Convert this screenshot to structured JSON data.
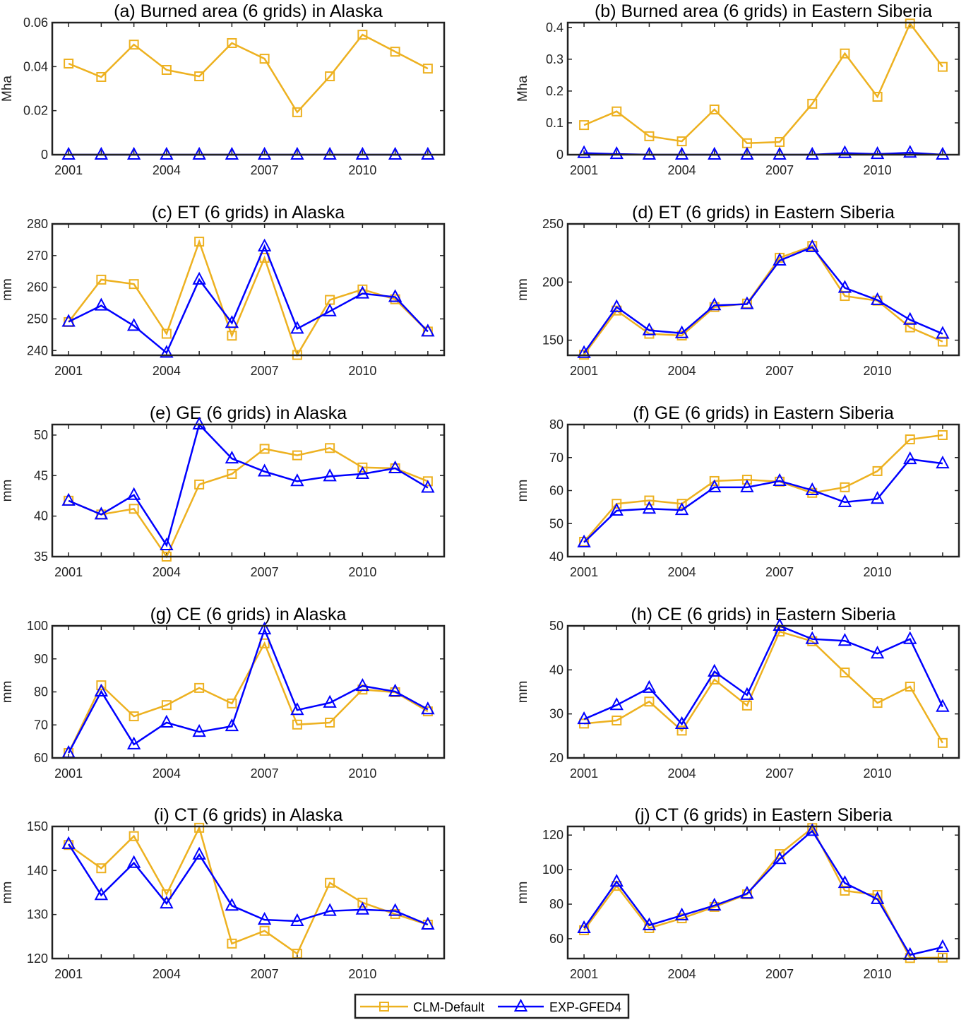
{
  "colors": {
    "CLM-Default": "#EDB120",
    "EXP-GFED4": "#0000FF"
  },
  "legend": {
    "items": [
      "CLM-Default",
      "EXP-GFED4"
    ],
    "placement": "bottom-center"
  },
  "chart_data": [
    {
      "type": "line",
      "title": "(a) Burned area (6 grids) in Alaska",
      "ylabel": "Mha",
      "xlim": [
        2000.5,
        2012.5
      ],
      "ylim": [
        0,
        0.06
      ],
      "yticks": [
        0,
        0.02,
        0.04,
        0.06
      ],
      "xticks": [
        2001,
        2004,
        2007,
        2010
      ],
      "x": [
        2001,
        2002,
        2003,
        2004,
        2005,
        2006,
        2007,
        2008,
        2009,
        2010,
        2011,
        2012
      ],
      "series": [
        {
          "name": "CLM-Default",
          "values": [
            0.0414,
            0.0353,
            0.05,
            0.0385,
            0.0356,
            0.0507,
            0.0436,
            0.0193,
            0.0356,
            0.0545,
            0.0468,
            0.0391
          ]
        },
        {
          "name": "EXP-GFED4",
          "values": [
            0,
            0,
            0,
            0,
            0,
            0,
            0,
            0,
            0,
            0,
            0,
            0
          ]
        }
      ]
    },
    {
      "type": "line",
      "title": "(b) Burned area (6 grids) in Eastern Siberia",
      "ylabel": "Mha",
      "xlim": [
        2000.5,
        2012.5
      ],
      "ylim": [
        0,
        0.415
      ],
      "yticks": [
        0,
        0.1,
        0.2,
        0.3,
        0.4
      ],
      "xticks": [
        2001,
        2004,
        2007,
        2010
      ],
      "x": [
        2001,
        2002,
        2003,
        2004,
        2005,
        2006,
        2007,
        2008,
        2009,
        2010,
        2011,
        2012
      ],
      "series": [
        {
          "name": "CLM-Default",
          "values": [
            0.093,
            0.136,
            0.058,
            0.042,
            0.142,
            0.036,
            0.04,
            0.16,
            0.318,
            0.182,
            0.412,
            0.276
          ]
        },
        {
          "name": "EXP-GFED4",
          "values": [
            0.005,
            0.002,
            0,
            0,
            0,
            0,
            0,
            0,
            0.005,
            0.002,
            0.006,
            0
          ]
        }
      ]
    },
    {
      "type": "line",
      "title": "(c) ET (6 grids) in Alaska",
      "ylabel": "mm",
      "xlim": [
        2000.5,
        2012.5
      ],
      "ylim": [
        238.5,
        280
      ],
      "yticks": [
        240,
        250,
        260,
        270,
        280
      ],
      "xticks": [
        2001,
        2004,
        2007,
        2010
      ],
      "x": [
        2001,
        2002,
        2003,
        2004,
        2005,
        2006,
        2007,
        2008,
        2009,
        2010,
        2011,
        2012
      ],
      "series": [
        {
          "name": "CLM-Default",
          "values": [
            249,
            262.4,
            261,
            245.3,
            274.4,
            244.7,
            269.3,
            238.6,
            256,
            259.3,
            256.2,
            246
          ]
        },
        {
          "name": "EXP-GFED4",
          "values": [
            249.1,
            254.2,
            247.8,
            239.3,
            262.4,
            248.7,
            272.9,
            246.9,
            252.4,
            258,
            256.9,
            246
          ]
        }
      ]
    },
    {
      "type": "line",
      "title": "(d) ET (6 grids) in Eastern Siberia",
      "ylabel": "mm",
      "xlim": [
        2000.5,
        2012.5
      ],
      "ylim": [
        137,
        250
      ],
      "yticks": [
        150,
        200,
        250
      ],
      "xticks": [
        2001,
        2004,
        2007,
        2010
      ],
      "x": [
        2001,
        2002,
        2003,
        2004,
        2005,
        2006,
        2007,
        2008,
        2009,
        2010,
        2011,
        2012
      ],
      "series": [
        {
          "name": "CLM-Default",
          "values": [
            137.5,
            175.5,
            155.5,
            154,
            178.5,
            181.5,
            220.9,
            231,
            188,
            184,
            161,
            148.8
          ]
        },
        {
          "name": "EXP-GFED4",
          "values": [
            139,
            178.5,
            158.5,
            156,
            180,
            181,
            218.5,
            230,
            195,
            184.5,
            167.5,
            155.5
          ]
        }
      ]
    },
    {
      "type": "line",
      "title": "(e) GE (6 grids) in Alaska",
      "ylabel": "mm",
      "xlim": [
        2000.5,
        2012.5
      ],
      "ylim": [
        35,
        51.3
      ],
      "yticks": [
        35,
        40,
        45,
        50
      ],
      "xticks": [
        2001,
        2004,
        2007,
        2010
      ],
      "x": [
        2001,
        2002,
        2003,
        2004,
        2005,
        2006,
        2007,
        2008,
        2009,
        2010,
        2011,
        2012
      ],
      "series": [
        {
          "name": "CLM-Default",
          "values": [
            41.9,
            40.2,
            40.9,
            35,
            43.9,
            45.2,
            48.3,
            47.5,
            48.4,
            46,
            45.9,
            44.3
          ]
        },
        {
          "name": "EXP-GFED4",
          "values": [
            41.9,
            40.2,
            42.6,
            36.4,
            51.3,
            47.1,
            45.5,
            44.3,
            44.9,
            45.2,
            45.9,
            43.5
          ]
        }
      ]
    },
    {
      "type": "line",
      "title": "(f) GE (6 grids) in Eastern Siberia",
      "ylabel": "mm",
      "xlim": [
        2000.5,
        2012.5
      ],
      "ylim": [
        40,
        80
      ],
      "yticks": [
        40,
        50,
        60,
        70,
        80
      ],
      "xticks": [
        2001,
        2004,
        2007,
        2010
      ],
      "x": [
        2001,
        2002,
        2003,
        2004,
        2005,
        2006,
        2007,
        2008,
        2009,
        2010,
        2011,
        2012
      ],
      "series": [
        {
          "name": "CLM-Default",
          "values": [
            44.5,
            56,
            57,
            56,
            62.9,
            63.3,
            62.7,
            59.3,
            61,
            65.9,
            75.5,
            76.8
          ]
        },
        {
          "name": "EXP-GFED4",
          "values": [
            44.3,
            53.9,
            54.5,
            54.1,
            61,
            61,
            62.9,
            60.1,
            56.5,
            57.5,
            69.5,
            68.2
          ]
        }
      ]
    },
    {
      "type": "line",
      "title": "(g) CE (6 grids) in Alaska",
      "ylabel": "mm",
      "xlim": [
        2000.5,
        2012.5
      ],
      "ylim": [
        60,
        100
      ],
      "yticks": [
        60,
        70,
        80,
        90,
        100
      ],
      "xticks": [
        2001,
        2004,
        2007,
        2010
      ],
      "x": [
        2001,
        2002,
        2003,
        2004,
        2005,
        2006,
        2007,
        2008,
        2009,
        2010,
        2011,
        2012
      ],
      "series": [
        {
          "name": "CLM-Default",
          "values": [
            61.5,
            82,
            72.6,
            76,
            81.2,
            76.5,
            94.7,
            70.1,
            70.7,
            80.7,
            79.9,
            74.1
          ]
        },
        {
          "name": "EXP-GFED4",
          "values": [
            61.5,
            80.1,
            64.1,
            70.7,
            67.9,
            69.6,
            98.9,
            74.5,
            76.7,
            81.8,
            80.1,
            74.7
          ]
        }
      ]
    },
    {
      "type": "line",
      "title": "(h) CE (6 grids) in Eastern Siberia",
      "ylabel": "mm",
      "xlim": [
        2000.5,
        2012.5
      ],
      "ylim": [
        20,
        50
      ],
      "yticks": [
        20,
        30,
        40,
        50
      ],
      "xticks": [
        2001,
        2004,
        2007,
        2010
      ],
      "x": [
        2001,
        2002,
        2003,
        2004,
        2005,
        2006,
        2007,
        2008,
        2009,
        2010,
        2011,
        2012
      ],
      "series": [
        {
          "name": "CLM-Default",
          "values": [
            27.8,
            28.5,
            32.8,
            26.2,
            37.8,
            31.9,
            48.7,
            46.5,
            39.4,
            32.5,
            36.2,
            23.4
          ]
        },
        {
          "name": "EXP-GFED4",
          "values": [
            28.8,
            32,
            35.9,
            27.7,
            39.6,
            34.3,
            50,
            47,
            46.6,
            43.7,
            47,
            31.6
          ]
        }
      ]
    },
    {
      "type": "line",
      "title": "(i) CT (6 grids) in Alaska",
      "ylabel": "mm",
      "xlim": [
        2000.5,
        2012.5
      ],
      "ylim": [
        120,
        150
      ],
      "yticks": [
        120,
        130,
        140,
        150
      ],
      "xticks": [
        2001,
        2004,
        2007,
        2010
      ],
      "x": [
        2001,
        2002,
        2003,
        2004,
        2005,
        2006,
        2007,
        2008,
        2009,
        2010,
        2011,
        2012
      ],
      "series": [
        {
          "name": "CLM-Default",
          "values": [
            145.8,
            140.5,
            147.8,
            134.6,
            149.7,
            123.4,
            126.3,
            121.1,
            137.2,
            132.7,
            130.1,
            127.7
          ]
        },
        {
          "name": "EXP-GFED4",
          "values": [
            146,
            134.4,
            141.7,
            132.5,
            143.6,
            132,
            128.8,
            128.5,
            130.8,
            131.1,
            130.8,
            127.7
          ]
        }
      ]
    },
    {
      "type": "line",
      "title": "(j) CT (6 grids) in Eastern Siberia",
      "ylabel": "mm",
      "xlim": [
        2000.5,
        2012.5
      ],
      "ylim": [
        48.5,
        125
      ],
      "yticks": [
        60,
        80,
        100,
        120
      ],
      "xticks": [
        2001,
        2004,
        2007,
        2010
      ],
      "x": [
        2001,
        2002,
        2003,
        2004,
        2005,
        2006,
        2007,
        2008,
        2009,
        2010,
        2011,
        2012
      ],
      "series": [
        {
          "name": "CLM-Default",
          "values": [
            64.9,
            90.6,
            66.1,
            71.8,
            78.4,
            85.7,
            109,
            124.1,
            87.8,
            85.3,
            48.8,
            49
          ]
        },
        {
          "name": "EXP-GFED4",
          "values": [
            66.1,
            93,
            67.8,
            73.5,
            79.2,
            86.1,
            106.1,
            122.4,
            92.2,
            82.9,
            50.6,
            55.1
          ]
        }
      ]
    }
  ]
}
